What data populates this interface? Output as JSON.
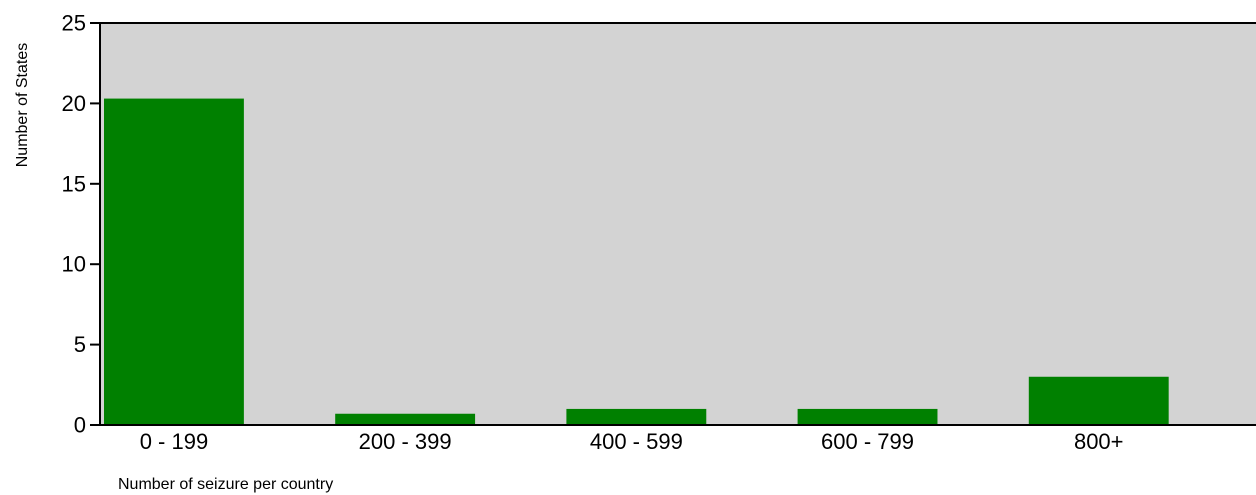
{
  "chart_data": {
    "type": "bar",
    "categories": [
      "0 - 199",
      "200 - 399",
      "400 - 599",
      "600 - 799",
      "800+"
    ],
    "series": [
      {
        "values": [
          20.3,
          0.7,
          1.0,
          1.0,
          3.0
        ]
      }
    ],
    "xlabel": "Number of seizure per country",
    "ylabel": "Number of States",
    "ylim": [
      0,
      25
    ],
    "yticks": [
      0,
      5,
      10,
      15,
      20,
      25
    ],
    "grid": false,
    "legend": "none",
    "colors": {
      "bar": "#008000",
      "plot_background": "#d3d3d3",
      "axis": "#000000"
    }
  }
}
